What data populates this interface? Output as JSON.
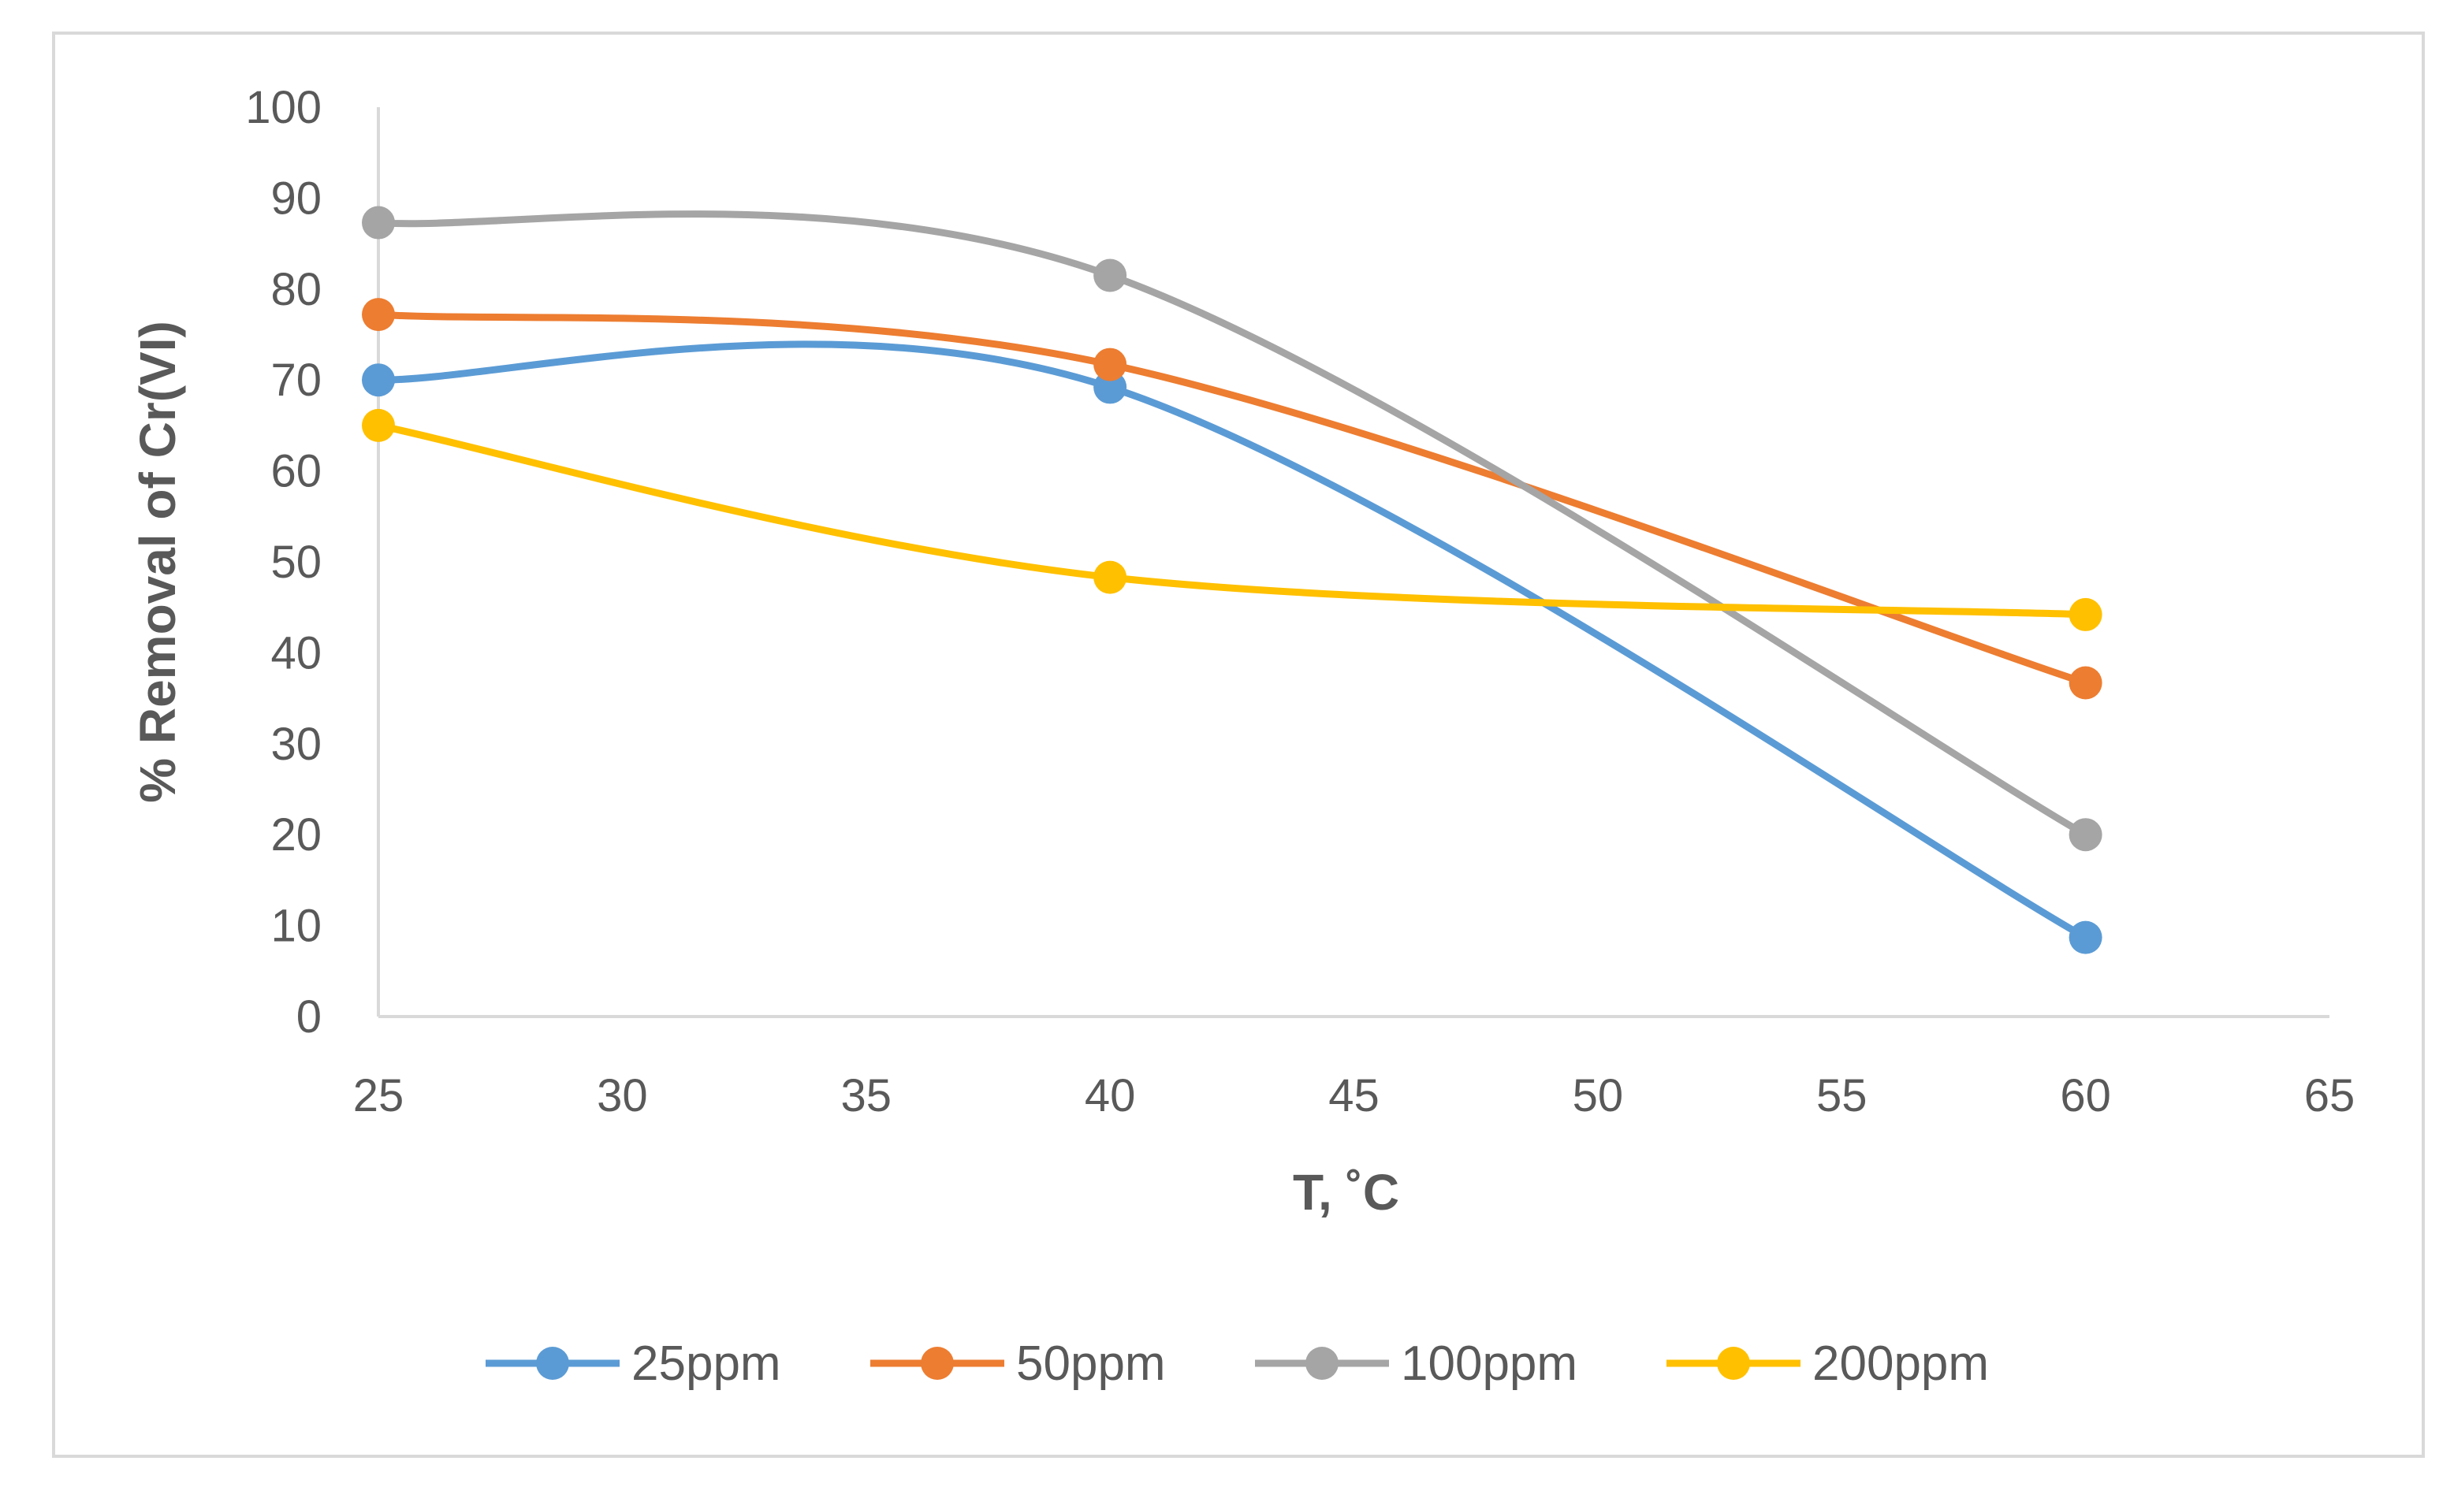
{
  "chart_data": {
    "type": "line",
    "smooth": true,
    "title": "",
    "xlabel": "T, ˚C",
    "ylabel": "% Removal of Cr(VI)",
    "xlim": [
      25,
      65
    ],
    "ylim": [
      0,
      100
    ],
    "xticks": [
      25,
      30,
      35,
      40,
      45,
      50,
      55,
      60,
      65
    ],
    "yticks": [
      0,
      10,
      20,
      30,
      40,
      50,
      60,
      70,
      80,
      90,
      100
    ],
    "grid": false,
    "legend_position": "bottom",
    "x": [
      25,
      40,
      60
    ],
    "series": [
      {
        "name": "25ppm",
        "color": "#5b9bd5",
        "values": [
          70,
          69.2,
          8.7
        ]
      },
      {
        "name": "50ppm",
        "color": "#ed7d31",
        "values": [
          77.2,
          71.7,
          36.7
        ]
      },
      {
        "name": "100ppm",
        "color": "#a5a5a5",
        "values": [
          87.3,
          81.5,
          20
        ]
      },
      {
        "name": "200ppm",
        "color": "#ffc000",
        "values": [
          65,
          48.3,
          44.2
        ]
      }
    ]
  }
}
